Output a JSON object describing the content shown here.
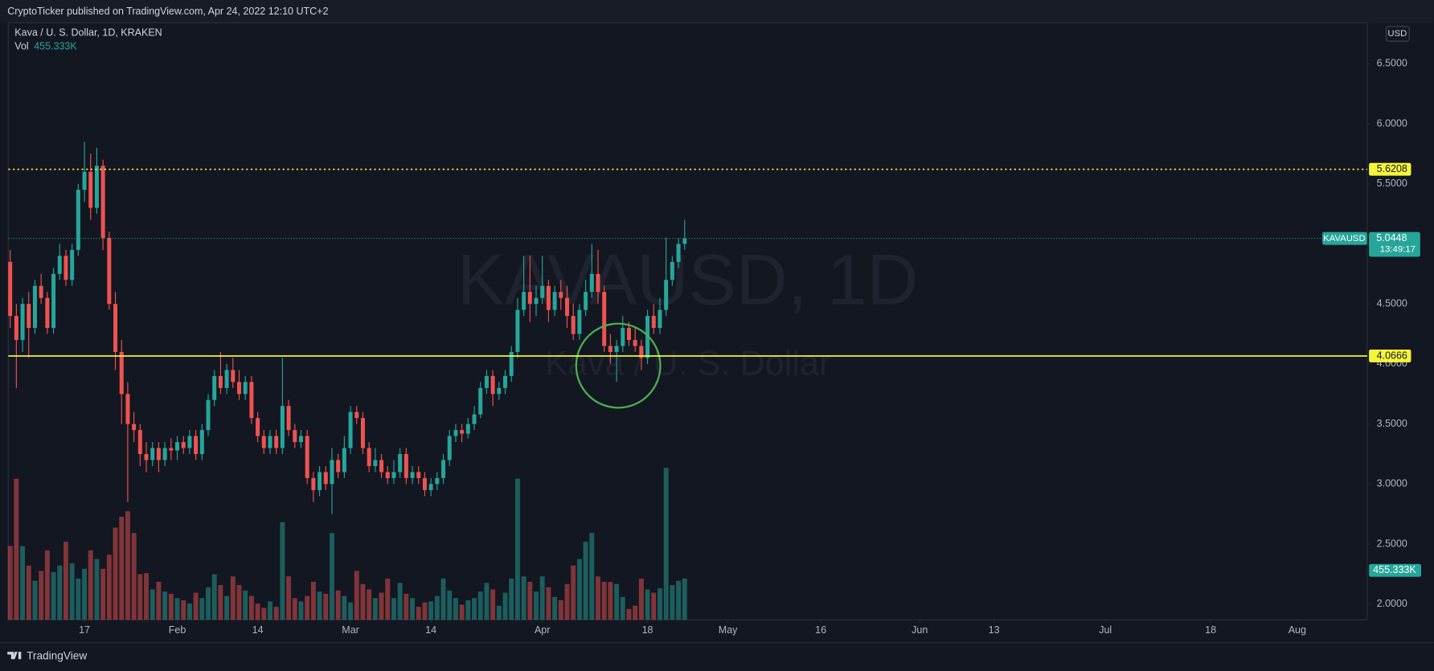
{
  "header": {
    "published": "CryptoTicker published on TradingView.com, Apr 24, 2022 12:10 UTC+2"
  },
  "footer": {
    "brand": "TradingView"
  },
  "chart_data": {
    "type": "candlestick",
    "legend": "Kava / U. S. Dollar, 1D, KRAKEN",
    "currency": "USD",
    "watermark": {
      "symbol": "KAVAUSD, 1D",
      "description": "Kava / U. S. Dollar"
    },
    "symbol_tag": "KAVAUSD",
    "countdown": "13:49:17",
    "up_color": "#26a69a",
    "down_color": "#ef5350",
    "xlim": [
      4.7,
      224.3
    ],
    "xticks": [
      {
        "value": 17,
        "label": "17"
      },
      {
        "value": 32,
        "label": "Feb"
      },
      {
        "value": 45,
        "label": "14"
      },
      {
        "value": 60,
        "label": "Mar"
      },
      {
        "value": 73,
        "label": "14"
      },
      {
        "value": 91,
        "label": "Apr"
      },
      {
        "value": 108,
        "label": "18"
      },
      {
        "value": 121,
        "label": "May"
      },
      {
        "value": 136,
        "label": "16"
      },
      {
        "value": 152,
        "label": "Jun"
      },
      {
        "value": 164,
        "label": "13"
      },
      {
        "value": 182,
        "label": "Jul"
      },
      {
        "value": 199,
        "label": "18"
      },
      {
        "value": 213,
        "label": "Aug"
      }
    ],
    "ylim": [
      1.87,
      6.84
    ],
    "yticks": [
      {
        "value": 2,
        "label": "2.0000"
      },
      {
        "value": 2.5,
        "label": "2.5000"
      },
      {
        "value": 3,
        "label": "3.0000"
      },
      {
        "value": 3.5,
        "label": "3.5000"
      },
      {
        "value": 4,
        "label": "4.0000"
      },
      {
        "value": 4.5,
        "label": "4.5000"
      },
      {
        "value": 5,
        "label": "5.0000"
      },
      {
        "value": 5.5,
        "label": "5.5000"
      },
      {
        "value": 6,
        "label": "6.0000"
      },
      {
        "value": 6.5,
        "label": "6.5000"
      }
    ],
    "grid": false,
    "hlines": [
      {
        "value": 5.6208,
        "style": "dotted",
        "color": "#f5f53b"
      },
      {
        "value": 4.0666,
        "style": "solid",
        "color": "#f5f53b"
      }
    ],
    "series": [
      {
        "x": [
          5,
          6,
          7,
          8,
          9,
          10,
          11,
          12,
          13,
          14,
          15,
          16,
          17,
          18,
          19,
          20,
          21,
          22,
          23,
          24,
          25,
          26,
          27,
          28,
          29,
          30,
          31,
          32,
          33,
          34,
          35,
          36,
          37,
          38,
          39,
          40,
          41,
          42,
          43,
          44,
          45,
          46,
          47,
          48,
          49,
          50,
          51,
          52,
          53,
          54,
          55,
          56,
          57,
          58,
          59,
          60,
          61,
          62,
          63,
          64,
          65,
          66,
          67,
          68,
          69,
          70,
          71,
          72,
          73,
          74,
          75,
          76,
          77,
          78,
          79,
          80,
          81,
          82,
          83,
          84,
          85,
          86,
          87,
          88,
          89,
          90,
          91,
          92,
          93,
          94,
          95,
          96,
          97,
          98,
          99,
          100,
          101,
          102,
          103,
          104,
          105,
          106,
          107,
          108,
          109,
          110,
          111,
          112,
          113,
          114
        ],
        "open": [
          4.85,
          4.4,
          4.2,
          4.5,
          4.3,
          4.65,
          4.55,
          4.3,
          4.75,
          4.9,
          4.7,
          4.95,
          5.45,
          5.6,
          5.3,
          5.65,
          5.05,
          4.5,
          4.1,
          3.75,
          3.5,
          3.45,
          3.25,
          3.2,
          3.3,
          3.2,
          3.3,
          3.28,
          3.35,
          3.3,
          3.4,
          3.25,
          3.45,
          3.7,
          3.9,
          3.8,
          3.95,
          3.85,
          3.75,
          3.85,
          3.55,
          3.4,
          3.3,
          3.4,
          3.3,
          3.65,
          3.45,
          3.35,
          3.4,
          3.05,
          2.95,
          3.1,
          3.0,
          3.2,
          3.1,
          3.3,
          3.6,
          3.55,
          3.3,
          3.15,
          3.2,
          3.1,
          3.05,
          3.1,
          3.25,
          3.05,
          3.1,
          3.05,
          2.95,
          3.0,
          3.05,
          3.2,
          3.4,
          3.45,
          3.42,
          3.5,
          3.58,
          3.8,
          3.9,
          3.75,
          3.8,
          3.9,
          4.1,
          4.45,
          4.6,
          4.5,
          4.55,
          4.65,
          4.45,
          4.6,
          4.55,
          4.4,
          4.25,
          4.45,
          4.6,
          4.75,
          4.6,
          4.15,
          4.1,
          4.15,
          4.3,
          4.2,
          4.15,
          4.05,
          4.4,
          4.3,
          4.45,
          4.7,
          4.85,
          5.0
        ],
        "high": [
          4.95,
          4.5,
          4.55,
          4.6,
          4.7,
          4.75,
          4.6,
          4.8,
          5.0,
          4.95,
          5.0,
          5.5,
          5.85,
          5.75,
          5.8,
          5.7,
          5.1,
          4.6,
          4.2,
          3.85,
          3.6,
          3.5,
          3.35,
          3.35,
          3.35,
          3.35,
          3.38,
          3.4,
          3.4,
          3.45,
          3.45,
          3.5,
          3.75,
          3.95,
          4.1,
          4.0,
          4.05,
          3.95,
          3.9,
          3.9,
          3.6,
          3.45,
          3.45,
          3.45,
          4.05,
          3.7,
          3.5,
          3.45,
          3.45,
          3.1,
          3.15,
          3.15,
          3.3,
          3.25,
          3.4,
          3.65,
          3.65,
          3.6,
          3.35,
          3.3,
          3.25,
          3.15,
          3.2,
          3.3,
          3.3,
          3.15,
          3.15,
          3.1,
          3.05,
          3.1,
          3.25,
          3.45,
          3.5,
          3.5,
          3.55,
          3.65,
          3.85,
          3.95,
          3.95,
          3.85,
          3.95,
          4.15,
          4.55,
          4.9,
          4.9,
          4.65,
          4.9,
          4.7,
          4.65,
          4.7,
          4.65,
          4.5,
          4.5,
          4.7,
          5.0,
          4.95,
          4.65,
          4.25,
          4.2,
          4.4,
          4.35,
          4.3,
          4.2,
          4.45,
          4.5,
          4.55,
          5.05,
          4.9,
          5.05,
          5.2
        ],
        "low": [
          4.3,
          3.8,
          4.1,
          4.05,
          4.25,
          4.5,
          4.25,
          4.25,
          4.7,
          4.65,
          4.65,
          4.9,
          5.35,
          5.2,
          5.25,
          4.95,
          4.45,
          3.95,
          3.5,
          2.85,
          3.35,
          3.15,
          3.1,
          3.15,
          3.1,
          3.15,
          3.2,
          3.2,
          3.25,
          3.25,
          3.2,
          3.2,
          3.4,
          3.65,
          3.75,
          3.75,
          3.8,
          3.7,
          3.7,
          3.5,
          3.35,
          3.25,
          3.25,
          3.25,
          3.25,
          3.4,
          3.3,
          3.3,
          3.0,
          2.85,
          2.9,
          2.95,
          2.75,
          3.05,
          3.05,
          3.25,
          3.5,
          3.25,
          3.1,
          3.1,
          3.05,
          3.0,
          3.0,
          3.05,
          3.0,
          3.0,
          3.0,
          2.9,
          2.9,
          2.95,
          3.0,
          3.15,
          3.35,
          3.35,
          3.38,
          3.45,
          3.55,
          3.75,
          3.65,
          3.7,
          3.75,
          3.85,
          4.05,
          4.4,
          4.35,
          4.4,
          4.5,
          4.35,
          4.4,
          4.45,
          4.3,
          4.2,
          4.2,
          4.4,
          4.55,
          4.5,
          4.1,
          4.0,
          3.85,
          4.1,
          4.15,
          4.1,
          3.95,
          4.0,
          4.25,
          4.25,
          4.4,
          4.65,
          4.8,
          4.95
        ],
        "close": [
          4.4,
          4.2,
          4.5,
          4.3,
          4.65,
          4.55,
          4.3,
          4.75,
          4.9,
          4.7,
          4.95,
          5.45,
          5.6,
          5.3,
          5.65,
          5.05,
          4.5,
          4.1,
          3.75,
          3.5,
          3.45,
          3.25,
          3.2,
          3.3,
          3.2,
          3.3,
          3.28,
          3.35,
          3.3,
          3.4,
          3.25,
          3.45,
          3.7,
          3.9,
          3.8,
          3.95,
          3.85,
          3.75,
          3.85,
          3.55,
          3.4,
          3.3,
          3.4,
          3.3,
          3.65,
          3.45,
          3.35,
          3.4,
          3.05,
          2.95,
          3.1,
          3.0,
          3.2,
          3.1,
          3.3,
          3.6,
          3.55,
          3.3,
          3.15,
          3.2,
          3.1,
          3.05,
          3.1,
          3.25,
          3.05,
          3.1,
          3.05,
          2.95,
          3.0,
          3.05,
          3.2,
          3.4,
          3.45,
          3.42,
          3.5,
          3.58,
          3.8,
          3.9,
          3.75,
          3.8,
          3.9,
          4.1,
          4.45,
          4.6,
          4.5,
          4.55,
          4.65,
          4.45,
          4.6,
          4.55,
          4.4,
          4.25,
          4.45,
          4.6,
          4.75,
          4.6,
          4.15,
          4.1,
          4.15,
          4.3,
          4.2,
          4.15,
          4.05,
          4.4,
          4.3,
          4.45,
          4.7,
          4.85,
          5.0,
          5.0448
        ]
      }
    ],
    "volume": {
      "name": "Vol",
      "last_label": "455.333K",
      "ylim": [
        0,
        5500000
      ],
      "values": [
        680000,
        1300000,
        680000,
        500000,
        360000,
        450000,
        640000,
        440000,
        500000,
        720000,
        520000,
        380000,
        470000,
        640000,
        560000,
        470000,
        600000,
        850000,
        950000,
        1000000,
        800000,
        420000,
        430000,
        280000,
        350000,
        260000,
        240000,
        200000,
        180000,
        150000,
        250000,
        200000,
        300000,
        420000,
        320000,
        220000,
        400000,
        320000,
        270000,
        220000,
        150000,
        110000,
        170000,
        120000,
        900000,
        400000,
        200000,
        170000,
        220000,
        350000,
        260000,
        240000,
        800000,
        270000,
        220000,
        160000,
        450000,
        330000,
        280000,
        200000,
        250000,
        380000,
        200000,
        340000,
        240000,
        200000,
        120000,
        160000,
        170000,
        220000,
        380000,
        270000,
        200000,
        140000,
        180000,
        200000,
        260000,
        340000,
        280000,
        130000,
        250000,
        380000,
        1300000,
        400000,
        350000,
        260000,
        400000,
        300000,
        210000,
        180000,
        330000,
        500000,
        560000,
        720000,
        800000,
        400000,
        350000,
        350000,
        330000,
        210000,
        100000,
        130000,
        380000,
        280000,
        250000,
        290000,
        1400000,
        320000,
        360000,
        380000,
        455333
      ]
    }
  }
}
